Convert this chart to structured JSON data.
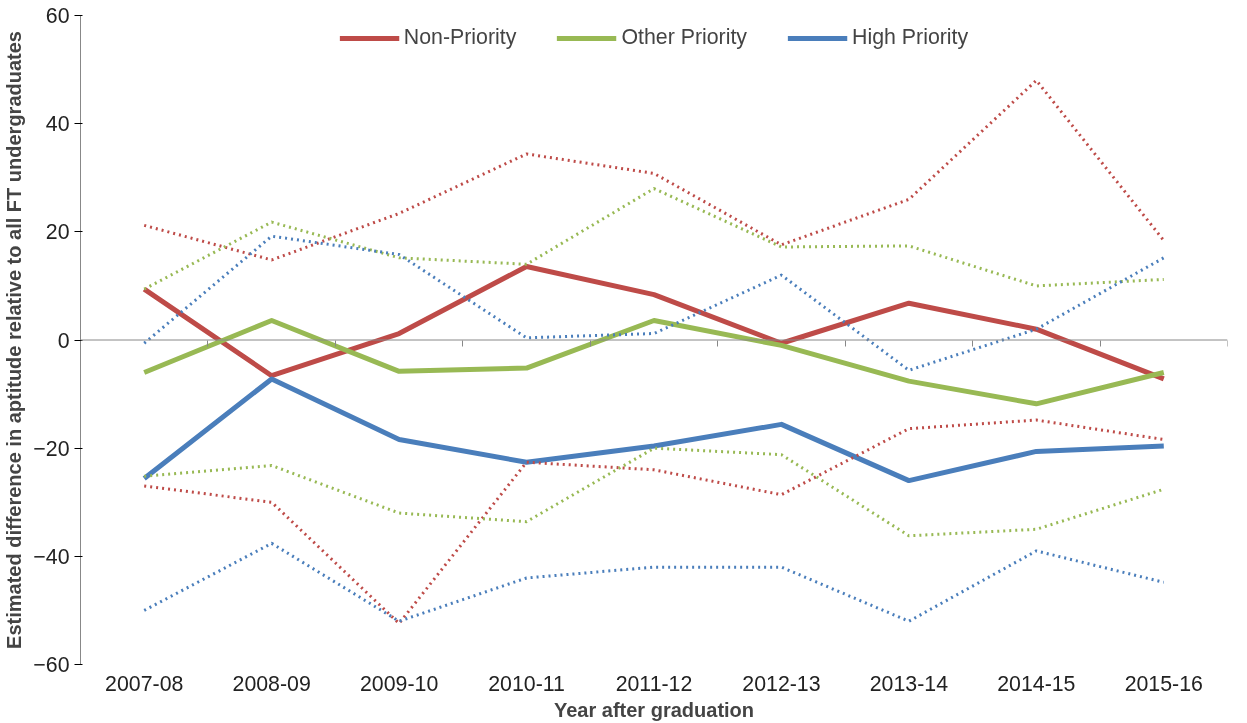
{
  "chart_data": {
    "type": "line",
    "xlabel": "Year after graduation",
    "ylabel": "Estimated difference in aptitude relative to all FT undergraduates",
    "categories": [
      "2007-08",
      "2008-09",
      "2009-10",
      "2010-11",
      "2011-12",
      "2012-13",
      "2013-14",
      "2014-15",
      "2015-16"
    ],
    "ylim": [
      -60,
      60
    ],
    "yticks": [
      -60,
      -40,
      -20,
      0,
      20,
      40,
      60
    ],
    "grid": false,
    "legend": "top",
    "ref_lines": [
      {
        "axis": "y",
        "value": 0,
        "color": "#888888"
      }
    ],
    "series": [
      {
        "name": "Non-Priority",
        "color": "#be4b48",
        "line_style": "solid",
        "values": [
          9.4,
          -6.6,
          1.2,
          13.6,
          8.4,
          -0.6,
          6.8,
          2,
          -7.2
        ]
      },
      {
        "name": "Other Priority",
        "color": "#98b954",
        "line_style": "solid",
        "values": [
          -6,
          3.6,
          -5.8,
          -5.2,
          3.6,
          -1,
          -7.6,
          -11.8,
          -6
        ]
      },
      {
        "name": "High Priority",
        "color": "#4a7ebb",
        "line_style": "solid",
        "values": [
          -25.6,
          -7.2,
          -18.4,
          -22.6,
          -19.6,
          -15.6,
          -26,
          -20.6,
          -19.6
        ]
      },
      {
        "color": "#be4b48",
        "line_style": "dotted",
        "values": [
          21.2,
          14.8,
          23.4,
          34.4,
          30.8,
          17.6,
          26,
          48,
          18.4
        ]
      },
      {
        "color": "#be4b48",
        "line_style": "dotted",
        "values": [
          -27,
          -30,
          -52.4,
          -22.6,
          -24,
          -28.6,
          -16.4,
          -14.8,
          -18.4
        ]
      },
      {
        "color": "#98b954",
        "line_style": "dotted",
        "values": [
          9.4,
          21.8,
          15.2,
          14,
          28,
          17.2,
          17.4,
          10,
          11.2
        ]
      },
      {
        "color": "#98b954",
        "line_style": "dotted",
        "values": [
          -25.2,
          -23.2,
          -32,
          -33.6,
          -20,
          -21.2,
          -36.2,
          -35,
          -27.6
        ]
      },
      {
        "color": "#4a7ebb",
        "line_style": "dotted",
        "values": [
          -0.6,
          19.2,
          15.8,
          0.4,
          1.2,
          12,
          -5.6,
          2,
          15.2
        ]
      },
      {
        "color": "#4a7ebb",
        "line_style": "dotted",
        "values": [
          -50,
          -37.6,
          -52,
          -44,
          -42,
          -42,
          -52,
          -39,
          -44.8
        ]
      }
    ]
  }
}
